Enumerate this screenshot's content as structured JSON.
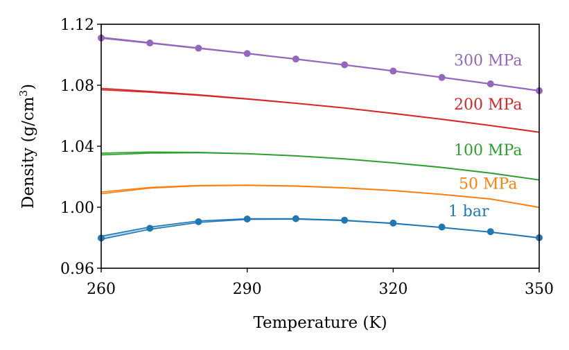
{
  "chart_data": {
    "type": "line",
    "title": "",
    "xlabel": "Temperature (K)",
    "ylabel_main": "Density (g/cm",
    "ylabel_sup": "3",
    "ylabel_close": ")",
    "xlim": [
      260,
      350
    ],
    "ylim": [
      0.96,
      1.12
    ],
    "xticks": [
      "260",
      "290",
      "320",
      "350"
    ],
    "xtick_values": [
      260,
      290,
      320,
      350
    ],
    "yticks": [
      "0.96",
      "1.00",
      "1.04",
      "1.08",
      "1.12"
    ],
    "ytick_values": [
      0.96,
      1.0,
      1.04,
      1.08,
      1.12
    ],
    "x": [
      260,
      270,
      280,
      290,
      300,
      310,
      320,
      330,
      340,
      350
    ],
    "series": [
      {
        "name": "1 bar",
        "color": "#1f77b4",
        "band": true,
        "upper": [
          0.981,
          0.987,
          0.991,
          0.9925,
          0.9925,
          0.9915,
          0.9895,
          0.9868,
          0.9838,
          0.98
        ],
        "lower": [
          0.979,
          0.9855,
          0.99,
          0.992,
          0.9922,
          0.9912,
          0.9893,
          0.9866,
          0.9836,
          0.9798
        ],
        "points": [
          0.9798,
          0.9862,
          0.9905,
          0.9923,
          0.9925,
          0.9915,
          0.9896,
          0.987,
          0.984,
          0.98
        ]
      },
      {
        "name": "50 MPa",
        "color": "#ff7f0e",
        "band": true,
        "upper": [
          1.01,
          1.013,
          1.0143,
          1.0145,
          1.014,
          1.0128,
          1.011,
          1.0085,
          1.0055,
          1.0
        ],
        "lower": [
          1.0088,
          1.0125,
          1.014,
          1.0143,
          1.0138,
          1.0126,
          1.0108,
          1.0083,
          1.0053,
          0.9998
        ],
        "points": null
      },
      {
        "name": "100 MPa",
        "color": "#2ca02c",
        "band": true,
        "upper": [
          1.0355,
          1.0362,
          1.036,
          1.0352,
          1.0338,
          1.0318,
          1.0292,
          1.0262,
          1.0225,
          1.018
        ],
        "lower": [
          1.0343,
          1.0355,
          1.0357,
          1.035,
          1.0336,
          1.0316,
          1.029,
          1.026,
          1.0223,
          1.0178
        ],
        "points": null
      },
      {
        "name": "200 MPa",
        "color": "#d62728",
        "band": true,
        "upper": [
          1.078,
          1.076,
          1.0738,
          1.0712,
          1.0683,
          1.0652,
          1.0616,
          1.0578,
          1.0537,
          1.0493
        ],
        "lower": [
          1.077,
          1.0754,
          1.0734,
          1.0709,
          1.0681,
          1.065,
          1.0614,
          1.0576,
          1.0535,
          1.0491
        ],
        "points": null
      },
      {
        "name": "300 MPa",
        "color": "#9467bd",
        "band": true,
        "upper": [
          1.1115,
          1.108,
          1.1045,
          1.101,
          1.0973,
          1.0935,
          1.0895,
          1.0853,
          1.081,
          1.0765
        ],
        "lower": [
          1.1108,
          1.1075,
          1.1041,
          1.1007,
          1.097,
          1.0932,
          1.0892,
          1.085,
          1.0807,
          1.0762
        ],
        "points": [
          1.111,
          1.1077,
          1.1043,
          1.1008,
          1.0972,
          1.0934,
          1.0893,
          1.0851,
          1.0809,
          1.0764
        ]
      }
    ],
    "annotations": [
      {
        "text": "300 MPa",
        "x": 339.5,
        "y": 1.093,
        "color": "#9467bd"
      },
      {
        "text": "200 MPa",
        "x": 339.5,
        "y": 1.064,
        "color": "#d62728"
      },
      {
        "text": "100 MPa",
        "x": 339.5,
        "y": 1.034,
        "color": "#2ca02c"
      },
      {
        "text": "50 MPa",
        "x": 339.5,
        "y": 1.012,
        "color": "#ff7f0e"
      },
      {
        "text": "1 bar",
        "x": 335.5,
        "y": 0.994,
        "color": "#1f77b4"
      }
    ]
  }
}
